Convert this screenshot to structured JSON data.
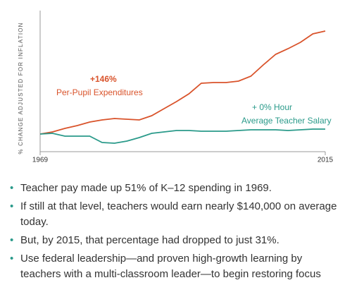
{
  "chart_data": {
    "type": "line",
    "y_label": "% CHANGE ADJUSTED FOR INFLATION",
    "x": [
      1969,
      1971,
      1973,
      1975,
      1977,
      1979,
      1981,
      1983,
      1985,
      1987,
      1989,
      1991,
      1993,
      1995,
      1997,
      1999,
      2001,
      2003,
      2005,
      2007,
      2009,
      2011,
      2013,
      2015
    ],
    "series": [
      {
        "name": "Per-Pupil Expenditures",
        "color": "#d9532b",
        "annotation": "+146%",
        "values": [
          0,
          3,
          8,
          12,
          17,
          20,
          22,
          21,
          20,
          26,
          36,
          46,
          57,
          72,
          73,
          73,
          75,
          82,
          98,
          113,
          121,
          130,
          142,
          146
        ]
      },
      {
        "name": "Average Teacher Salary",
        "color": "#2a9a8a",
        "annotation": "+ 0% Hour",
        "values": [
          0,
          1,
          -3,
          -3,
          -3,
          -12,
          -13,
          -10,
          -5,
          1,
          3,
          5,
          5,
          4,
          4,
          4,
          5,
          6,
          6,
          6,
          5,
          6,
          7,
          7
        ]
      }
    ],
    "xlim": [
      1969,
      2015
    ],
    "xticks": [
      1969,
      2015
    ],
    "ylim": [
      -25,
      175
    ]
  },
  "bullets": [
    "Teacher pay made up 51% of K–12 spending in 1969.",
    "If still at that level, teachers would earn  nearly $140,000 on average today.",
    "But, by 2015, that percentage had dropped to just 31%.",
    "Use federal leadership—and proven high-growth learning by teachers with a multi-classroom leader—to begin restoring focus"
  ]
}
